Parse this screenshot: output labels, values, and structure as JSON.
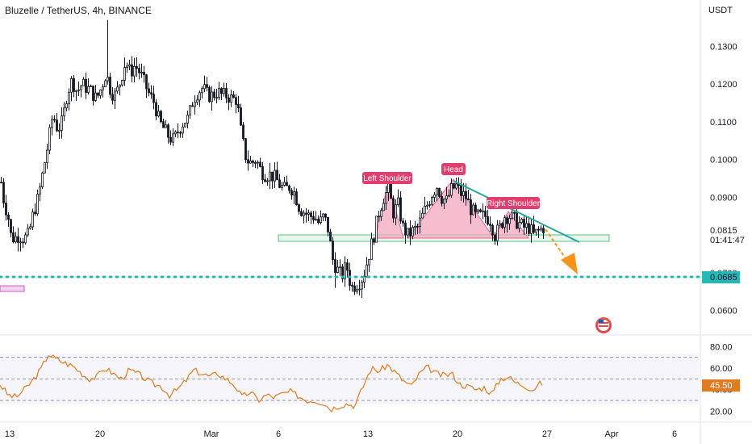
{
  "header": {
    "title": "Bluzelle / TetherUS, 4h, BINANCE"
  },
  "colors": {
    "up": "#26a69a",
    "down": "#ef5350",
    "candle": "#131722",
    "rsi": "#e07b1f",
    "support_line": "#26a69a",
    "pattern_fill": "#f3a7bf",
    "badge_dark": "#131722",
    "dotted_level": "#26b7b7",
    "arrow": "#f7931a",
    "trend": "#26a69a"
  },
  "chart_data": [
    {
      "type": "candlestick",
      "title": "Bluzelle / TetherUS, 4h, BINANCE",
      "yaxis_unit": "USDT",
      "yticks": [
        "0.1300",
        "0.1200",
        "0.1100",
        "0.1000",
        "0.0900",
        "0.0700",
        "0.0600"
      ],
      "xticks": [
        "13",
        "20",
        "Mar",
        "6",
        "13",
        "20",
        "27",
        "Apr",
        "6"
      ],
      "ylim": [
        0.055,
        0.138
      ],
      "price_path": [
        [
          0,
          0.094
        ],
        [
          4,
          0.088
        ],
        [
          8,
          0.086
        ],
        [
          12,
          0.08
        ],
        [
          16,
          0.079
        ],
        [
          22,
          0.08
        ],
        [
          28,
          0.079
        ],
        [
          34,
          0.08
        ],
        [
          40,
          0.086
        ],
        [
          46,
          0.09
        ],
        [
          52,
          0.097
        ],
        [
          58,
          0.104
        ],
        [
          64,
          0.112
        ],
        [
          70,
          0.108
        ],
        [
          76,
          0.11
        ],
        [
          82,
          0.118
        ],
        [
          88,
          0.121
        ],
        [
          94,
          0.118
        ],
        [
          100,
          0.12
        ],
        [
          106,
          0.119
        ],
        [
          112,
          0.118
        ],
        [
          118,
          0.116
        ],
        [
          124,
          0.119
        ],
        [
          130,
          0.123
        ],
        [
          136,
          0.118
        ],
        [
          142,
          0.117
        ],
        [
          148,
          0.121
        ],
        [
          154,
          0.126
        ],
        [
          160,
          0.123
        ],
        [
          166,
          0.125
        ],
        [
          172,
          0.123
        ],
        [
          178,
          0.12
        ],
        [
          184,
          0.117
        ],
        [
          190,
          0.115
        ],
        [
          196,
          0.11
        ],
        [
          202,
          0.108
        ],
        [
          208,
          0.106
        ],
        [
          214,
          0.105
        ],
        [
          220,
          0.108
        ],
        [
          226,
          0.11
        ],
        [
          232,
          0.111
        ],
        [
          238,
          0.116
        ],
        [
          244,
          0.118
        ],
        [
          250,
          0.119
        ],
        [
          256,
          0.117
        ],
        [
          262,
          0.117
        ],
        [
          268,
          0.118
        ],
        [
          274,
          0.117
        ],
        [
          280,
          0.117
        ],
        [
          286,
          0.116
        ],
        [
          292,
          0.116
        ],
        [
          298,
          0.106
        ],
        [
          304,
          0.1
        ],
        [
          310,
          0.099
        ],
        [
          316,
          0.1
        ],
        [
          322,
          0.097
        ],
        [
          328,
          0.096
        ],
        [
          334,
          0.096
        ],
        [
          340,
          0.095
        ],
        [
          346,
          0.093
        ],
        [
          352,
          0.092
        ],
        [
          358,
          0.093
        ],
        [
          364,
          0.091
        ],
        [
          370,
          0.087
        ],
        [
          376,
          0.086
        ],
        [
          382,
          0.085
        ],
        [
          388,
          0.085
        ],
        [
          394,
          0.083
        ],
        [
          400,
          0.085
        ],
        [
          406,
          0.081
        ],
        [
          410,
          0.074
        ],
        [
          416,
          0.071
        ],
        [
          422,
          0.069
        ],
        [
          428,
          0.072
        ],
        [
          434,
          0.066
        ],
        [
          440,
          0.067
        ],
        [
          446,
          0.068
        ],
        [
          450,
          0.07
        ],
        [
          456,
          0.075
        ],
        [
          462,
          0.08
        ],
        [
          468,
          0.086
        ],
        [
          474,
          0.09
        ],
        [
          480,
          0.092
        ],
        [
          486,
          0.086
        ],
        [
          492,
          0.088
        ],
        [
          498,
          0.082
        ],
        [
          504,
          0.08
        ],
        [
          510,
          0.081
        ],
        [
          516,
          0.082
        ],
        [
          522,
          0.085
        ],
        [
          528,
          0.088
        ],
        [
          534,
          0.091
        ],
        [
          540,
          0.093
        ],
        [
          546,
          0.09
        ],
        [
          552,
          0.089
        ],
        [
          558,
          0.092
        ],
        [
          564,
          0.093
        ],
        [
          570,
          0.091
        ],
        [
          576,
          0.09
        ],
        [
          582,
          0.087
        ],
        [
          588,
          0.085
        ],
        [
          594,
          0.085
        ],
        [
          600,
          0.085
        ],
        [
          606,
          0.084
        ],
        [
          612,
          0.08
        ],
        [
          618,
          0.082
        ],
        [
          624,
          0.085
        ],
        [
          630,
          0.085
        ],
        [
          636,
          0.084
        ],
        [
          642,
          0.083
        ],
        [
          648,
          0.082
        ],
        [
          654,
          0.082
        ],
        [
          660,
          0.08
        ],
        [
          666,
          0.081
        ],
        [
          672,
          0.082
        ]
      ],
      "rsi": {
        "yticks": [
          "80.00",
          "60.00",
          "40.00",
          "20.00"
        ],
        "ylim": [
          15,
          84
        ],
        "levels": [
          70,
          50,
          30
        ],
        "current": "45.50",
        "path": [
          [
            0,
            45
          ],
          [
            10,
            35
          ],
          [
            20,
            33
          ],
          [
            30,
            40
          ],
          [
            40,
            48
          ],
          [
            50,
            58
          ],
          [
            60,
            73
          ],
          [
            70,
            68
          ],
          [
            80,
            65
          ],
          [
            90,
            62
          ],
          [
            100,
            56
          ],
          [
            110,
            50
          ],
          [
            120,
            52
          ],
          [
            130,
            60
          ],
          [
            140,
            55
          ],
          [
            150,
            50
          ],
          [
            160,
            58
          ],
          [
            170,
            55
          ],
          [
            180,
            50
          ],
          [
            190,
            45
          ],
          [
            200,
            43
          ],
          [
            210,
            35
          ],
          [
            220,
            40
          ],
          [
            230,
            48
          ],
          [
            240,
            58
          ],
          [
            250,
            55
          ],
          [
            260,
            52
          ],
          [
            270,
            55
          ],
          [
            280,
            50
          ],
          [
            290,
            45
          ],
          [
            300,
            33
          ],
          [
            310,
            38
          ],
          [
            320,
            30
          ],
          [
            330,
            35
          ],
          [
            340,
            33
          ],
          [
            350,
            36
          ],
          [
            360,
            38
          ],
          [
            370,
            34
          ],
          [
            380,
            30
          ],
          [
            390,
            30
          ],
          [
            400,
            28
          ],
          [
            410,
            22
          ],
          [
            420,
            25
          ],
          [
            430,
            27
          ],
          [
            440,
            25
          ],
          [
            450,
            43
          ],
          [
            460,
            60
          ],
          [
            470,
            57
          ],
          [
            480,
            63
          ],
          [
            490,
            56
          ],
          [
            500,
            48
          ],
          [
            510,
            43
          ],
          [
            520,
            55
          ],
          [
            530,
            61
          ],
          [
            540,
            55
          ],
          [
            550,
            53
          ],
          [
            560,
            55
          ],
          [
            570,
            45
          ],
          [
            580,
            43
          ],
          [
            590,
            40
          ],
          [
            600,
            42
          ],
          [
            610,
            36
          ],
          [
            620,
            50
          ],
          [
            630,
            52
          ],
          [
            640,
            46
          ],
          [
            650,
            44
          ],
          [
            660,
            40
          ],
          [
            670,
            46
          ]
        ]
      },
      "current_price": "0.0815",
      "countdown": "01:41:47",
      "level_price": "0.0685",
      "annotations": {
        "left_shoulder": "Left Shoulder",
        "head": "Head",
        "right_shoulder": "Right Shoulder"
      }
    }
  ]
}
